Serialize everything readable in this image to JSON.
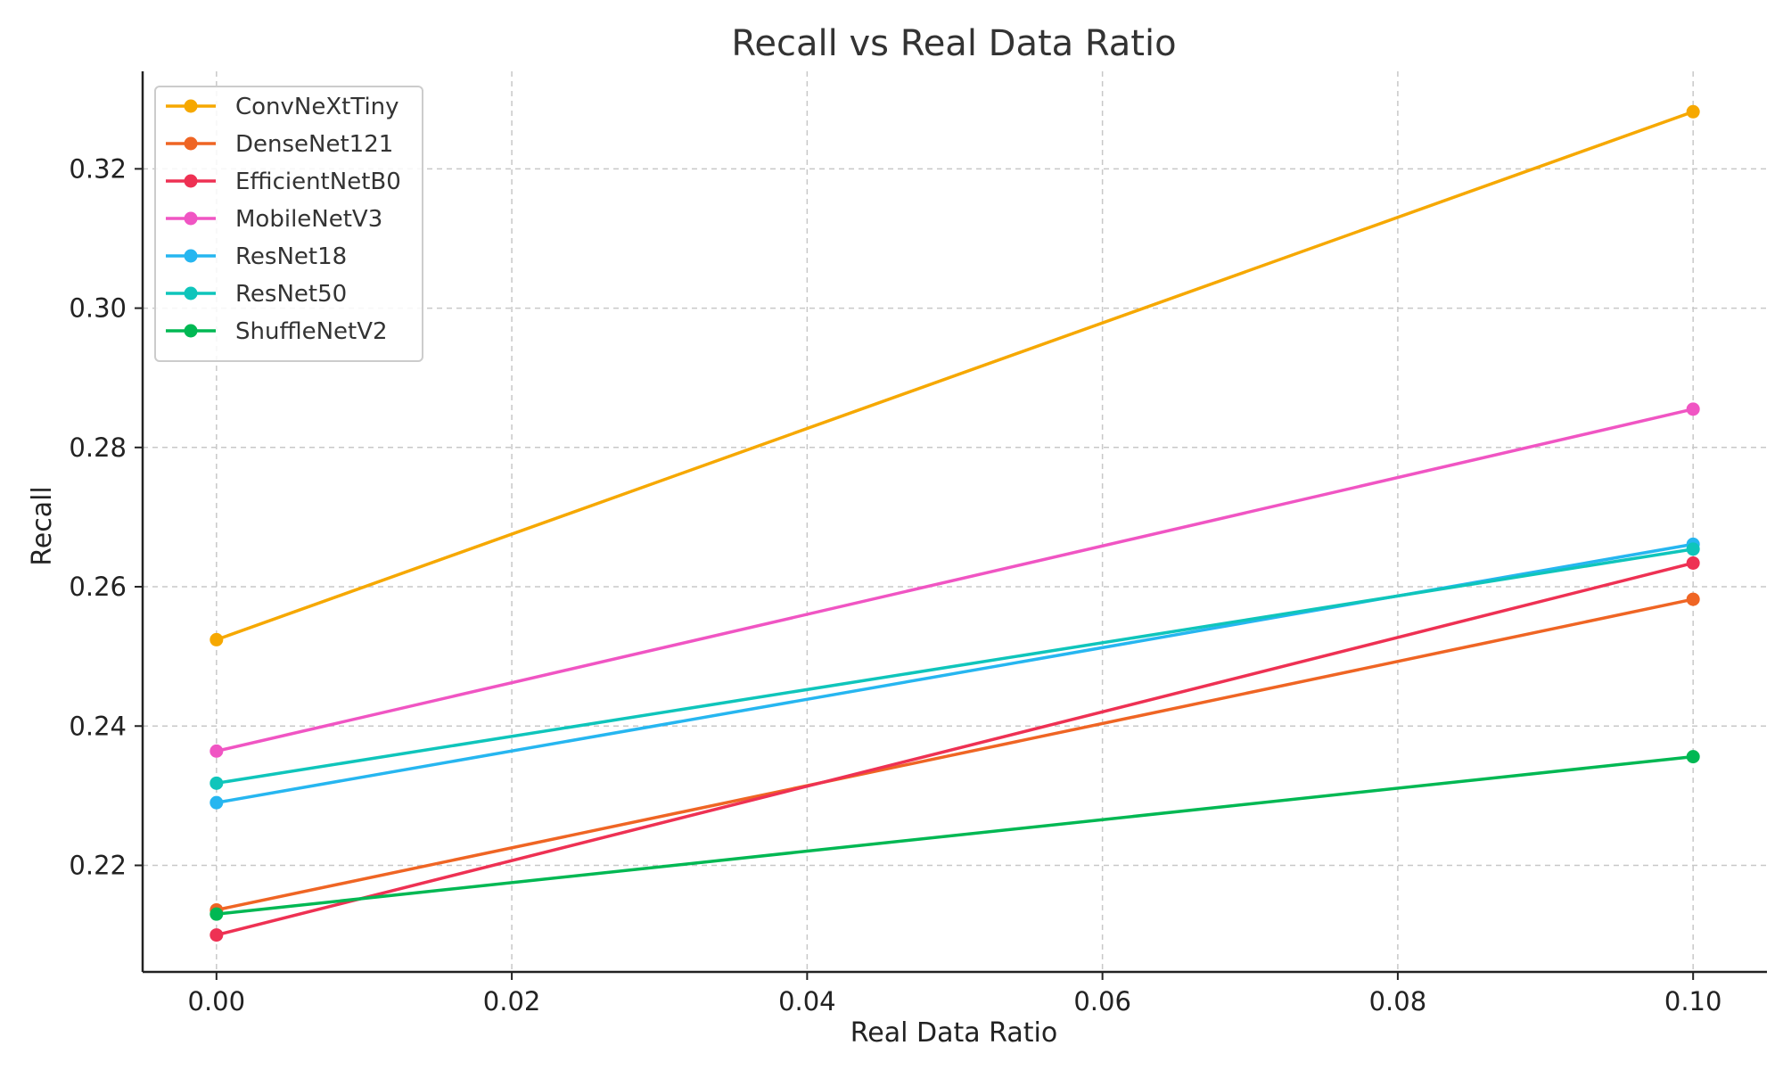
{
  "chart_data": {
    "type": "line",
    "title": "Recall vs Real Data Ratio",
    "xlabel": "Real Data Ratio",
    "ylabel": "Recall",
    "x": [
      0.0,
      0.1
    ],
    "xlim": [
      -0.005,
      0.105
    ],
    "ylim": [
      0.2047,
      0.334
    ],
    "xticks": [
      0.0,
      0.02,
      0.04,
      0.06,
      0.08,
      0.1
    ],
    "xtick_labels": [
      "0.00",
      "0.02",
      "0.04",
      "0.06",
      "0.08",
      "0.10"
    ],
    "yticks": [
      0.22,
      0.24,
      0.26,
      0.28,
      0.3,
      0.32
    ],
    "ytick_labels": [
      "0.22",
      "0.24",
      "0.26",
      "0.28",
      "0.30",
      "0.32"
    ],
    "grid": true,
    "legend_position": "top-left",
    "series": [
      {
        "name": "ConvNeXtTiny",
        "color": "#f6a800",
        "values": [
          0.2524,
          0.3282
        ]
      },
      {
        "name": "DenseNet121",
        "color": "#ef6524",
        "values": [
          0.2136,
          0.2582
        ]
      },
      {
        "name": "EfficientNetB0",
        "color": "#ee3153",
        "values": [
          0.21,
          0.2634
        ]
      },
      {
        "name": "MobileNetV3",
        "color": "#f055c3",
        "values": [
          0.2364,
          0.2855
        ]
      },
      {
        "name": "ResNet18",
        "color": "#26b6f0",
        "values": [
          0.229,
          0.2661
        ]
      },
      {
        "name": "ResNet50",
        "color": "#0fc5bb",
        "values": [
          0.2318,
          0.2654
        ]
      },
      {
        "name": "ShuffleNetV2",
        "color": "#00b853",
        "values": [
          0.213,
          0.2356
        ]
      }
    ]
  }
}
